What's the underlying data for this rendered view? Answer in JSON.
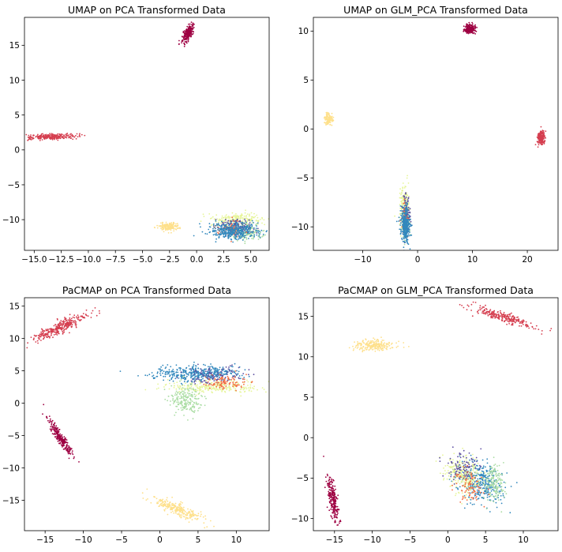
{
  "chart_data": [
    {
      "type": "scatter",
      "title": "UMAP on PCA Transformed Data",
      "xlim": [
        -15.9,
        6.7
      ],
      "ylim": [
        -14.4,
        19.0
      ],
      "xticks": [
        -15.0,
        -12.5,
        -10.0,
        -7.5,
        -5.0,
        -2.5,
        0.0,
        2.5,
        5.0
      ],
      "xtick_labels": [
        "−15.0",
        "−12.5",
        "−10.0",
        "−7.5",
        "−5.0",
        "−2.5",
        "0.0",
        "2.5",
        "5.0"
      ],
      "yticks": [
        -10,
        -5,
        0,
        5,
        10,
        15
      ],
      "ytick_labels": [
        "−10",
        "−5",
        "0",
        "5",
        "10",
        "15"
      ],
      "grid": false,
      "clusters": [
        {
          "color": "#9e0142",
          "center": [
            -0.8,
            16.7
          ],
          "spread": [
            0.2,
            0.6
          ],
          "angle": -15,
          "n": 260
        },
        {
          "color": "#d53e4f",
          "center": [
            -13.4,
            1.9
          ],
          "spread": [
            1.2,
            0.2
          ],
          "angle": 2,
          "n": 260
        },
        {
          "color": "#fee08b",
          "center": [
            -2.6,
            -11.0
          ],
          "spread": [
            0.5,
            0.3
          ],
          "angle": 0,
          "n": 160
        },
        {
          "color": "#e6f598",
          "center": [
            3.9,
            -10.0
          ],
          "spread": [
            1.1,
            0.5
          ],
          "angle": 0,
          "n": 220
        },
        {
          "color": "#abdda4",
          "center": [
            4.7,
            -11.9
          ],
          "spread": [
            0.8,
            0.5
          ],
          "angle": 0,
          "n": 160
        },
        {
          "color": "#5e4fa2",
          "center": [
            3.6,
            -11.0
          ],
          "spread": [
            0.8,
            0.6
          ],
          "angle": 0,
          "n": 130
        },
        {
          "color": "#f46d43",
          "center": [
            3.0,
            -11.2
          ],
          "spread": [
            0.7,
            0.6
          ],
          "angle": 0,
          "n": 80
        },
        {
          "color": "#3288bd",
          "center": [
            3.5,
            -11.6
          ],
          "spread": [
            1.2,
            0.6
          ],
          "angle": 0,
          "n": 380
        }
      ]
    },
    {
      "type": "scatter",
      "title": "UMAP on GLM_PCA Transformed Data",
      "xlim": [
        -19.0,
        25.6
      ],
      "ylim": [
        -12.4,
        11.4
      ],
      "xticks": [
        -10,
        0,
        10,
        20
      ],
      "xtick_labels": [
        "−10",
        "0",
        "10",
        "20"
      ],
      "yticks": [
        -10,
        -5,
        0,
        5,
        10
      ],
      "ytick_labels": [
        "−10",
        "−5",
        "0",
        "5",
        "10"
      ],
      "grid": false,
      "clusters": [
        {
          "color": "#9e0142",
          "center": [
            9.6,
            10.2
          ],
          "spread": [
            0.5,
            0.25
          ],
          "angle": 0,
          "n": 200
        },
        {
          "color": "#fee08b",
          "center": [
            -16.2,
            1.0
          ],
          "spread": [
            0.35,
            0.3
          ],
          "angle": 0,
          "n": 140
        },
        {
          "color": "#d53e4f",
          "center": [
            22.5,
            -0.9
          ],
          "spread": [
            0.35,
            0.35
          ],
          "angle": 0,
          "n": 200
        },
        {
          "color": "#e6f598",
          "center": [
            -2.4,
            -8.0
          ],
          "spread": [
            0.4,
            1.0
          ],
          "angle": 0,
          "n": 200
        },
        {
          "color": "#abdda4",
          "center": [
            -2.2,
            -9.5
          ],
          "spread": [
            0.35,
            0.8
          ],
          "angle": 0,
          "n": 120
        },
        {
          "color": "#5e4fa2",
          "center": [
            -2.1,
            -8.8
          ],
          "spread": [
            0.35,
            1.0
          ],
          "angle": 0,
          "n": 100
        },
        {
          "color": "#f46d43",
          "center": [
            -2.2,
            -9.2
          ],
          "spread": [
            0.3,
            0.8
          ],
          "angle": 0,
          "n": 60
        },
        {
          "color": "#3288bd",
          "center": [
            -2.2,
            -9.8
          ],
          "spread": [
            0.4,
            0.9
          ],
          "angle": 0,
          "n": 360
        }
      ]
    },
    {
      "type": "scatter",
      "title": "PaCMAP on PCA Transformed Data",
      "xlim": [
        -17.7,
        14.3
      ],
      "ylim": [
        -19.7,
        16.3
      ],
      "xticks": [
        -15,
        -10,
        -5,
        0,
        5,
        10
      ],
      "xtick_labels": [
        "−15",
        "−10",
        "−5",
        "0",
        "5",
        "10"
      ],
      "yticks": [
        -15,
        -10,
        -5,
        0,
        5,
        10,
        15
      ],
      "ytick_labels": [
        "−15",
        "−10",
        "−5",
        "0",
        "5",
        "10",
        "15"
      ],
      "grid": false,
      "clusters": [
        {
          "color": "#d53e4f",
          "center": [
            -13.2,
            11.6
          ],
          "spread": [
            2.0,
            0.45
          ],
          "angle": 28,
          "n": 300
        },
        {
          "color": "#9e0142",
          "center": [
            -13.0,
            -5.3
          ],
          "spread": [
            1.7,
            0.25
          ],
          "angle": -62,
          "n": 260
        },
        {
          "color": "#fee08b",
          "center": [
            2.3,
            -16.4
          ],
          "spread": [
            2.0,
            0.45
          ],
          "angle": -28,
          "n": 260
        },
        {
          "color": "#3288bd",
          "center": [
            5.0,
            4.6
          ],
          "spread": [
            3.0,
            0.6
          ],
          "angle": 0,
          "n": 420
        },
        {
          "color": "#e6f598",
          "center": [
            6.8,
            2.5
          ],
          "spread": [
            3.2,
            0.5
          ],
          "angle": 0,
          "n": 260
        },
        {
          "color": "#abdda4",
          "center": [
            3.4,
            0.6
          ],
          "spread": [
            1.0,
            1.1
          ],
          "angle": 0,
          "n": 200
        },
        {
          "color": "#5e4fa2",
          "center": [
            7.0,
            4.2
          ],
          "spread": [
            1.8,
            0.7
          ],
          "angle": 0,
          "n": 100
        },
        {
          "color": "#f46d43",
          "center": [
            8.6,
            3.2
          ],
          "spread": [
            1.4,
            0.6
          ],
          "angle": 0,
          "n": 100
        }
      ]
    },
    {
      "type": "scatter",
      "title": "PaCMAP on GLM_PCA Transformed Data",
      "xlim": [
        -17.8,
        14.6
      ],
      "ylim": [
        -11.5,
        17.3
      ],
      "xticks": [
        -15,
        -10,
        -5,
        0,
        5,
        10
      ],
      "xtick_labels": [
        "−15",
        "−10",
        "−5",
        "0",
        "5",
        "10"
      ],
      "yticks": [
        -10,
        -5,
        0,
        5,
        10,
        15
      ],
      "ytick_labels": [
        "−10",
        "−5",
        "0",
        "5",
        "10",
        "15"
      ],
      "grid": false,
      "clusters": [
        {
          "color": "#d53e4f",
          "center": [
            7.4,
            14.9
          ],
          "spread": [
            2.2,
            0.3
          ],
          "angle": -15,
          "n": 260
        },
        {
          "color": "#fee08b",
          "center": [
            -9.8,
            11.4
          ],
          "spread": [
            1.3,
            0.35
          ],
          "angle": 0,
          "n": 220
        },
        {
          "color": "#9e0142",
          "center": [
            -15.2,
            -7.8
          ],
          "spread": [
            1.5,
            0.28
          ],
          "angle": -80,
          "n": 240
        },
        {
          "color": "#3288bd",
          "center": [
            4.4,
            -5.5
          ],
          "spread": [
            1.6,
            1.2
          ],
          "angle": -35,
          "n": 380
        },
        {
          "color": "#e6f598",
          "center": [
            2.0,
            -4.6
          ],
          "spread": [
            1.4,
            1.0
          ],
          "angle": -40,
          "n": 280
        },
        {
          "color": "#abdda4",
          "center": [
            6.2,
            -5.6
          ],
          "spread": [
            0.7,
            1.2
          ],
          "angle": 0,
          "n": 160
        },
        {
          "color": "#5e4fa2",
          "center": [
            1.8,
            -3.6
          ],
          "spread": [
            1.1,
            1.0
          ],
          "angle": -40,
          "n": 100
        },
        {
          "color": "#f46d43",
          "center": [
            2.8,
            -6.0
          ],
          "spread": [
            1.0,
            1.0
          ],
          "angle": -40,
          "n": 90
        }
      ]
    }
  ]
}
